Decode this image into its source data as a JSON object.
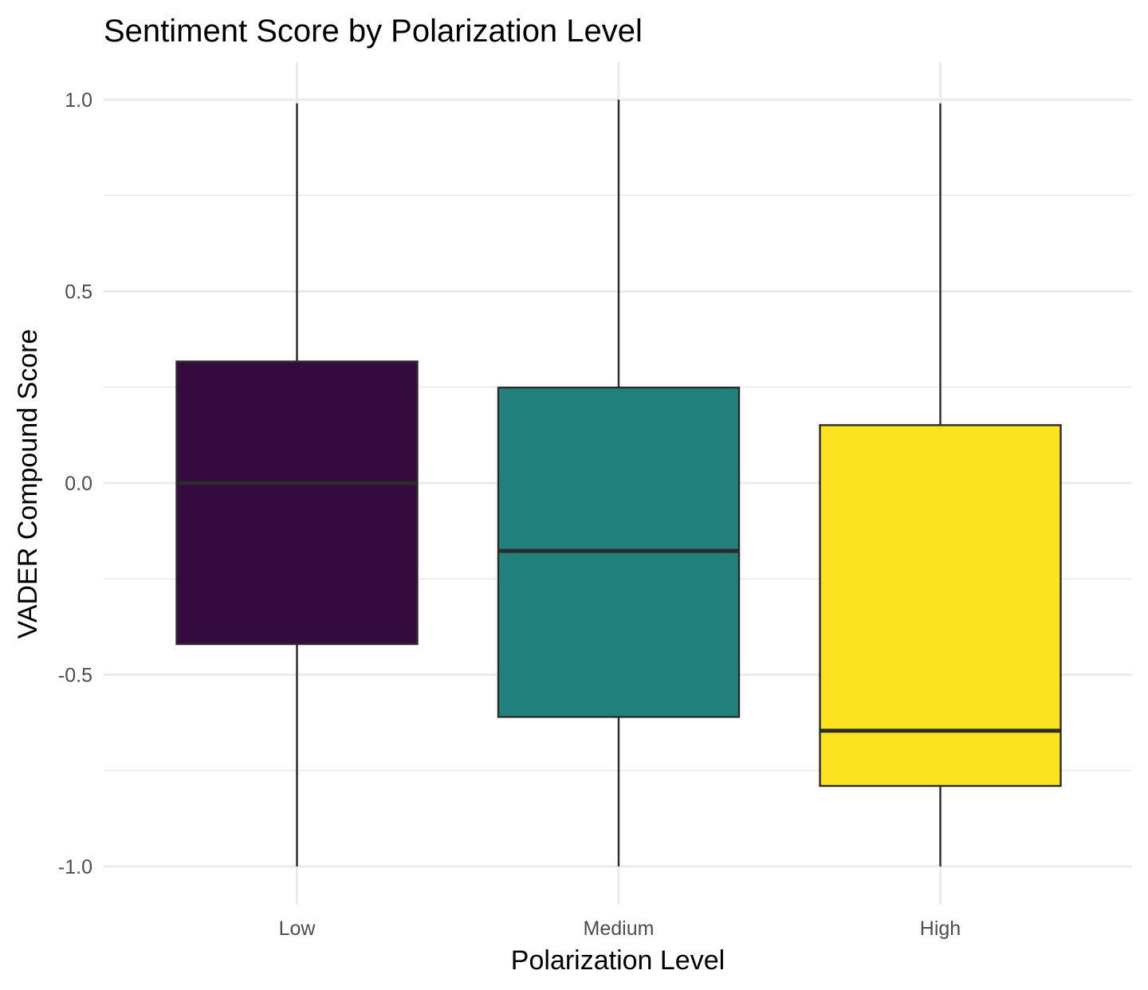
{
  "chart_data": {
    "type": "box",
    "title": "Sentiment Score by Polarization Level",
    "xlabel": "Polarization Level",
    "ylabel": "VADER Compound Score",
    "categories": [
      "Low",
      "Medium",
      "High"
    ],
    "ylim": [
      -1.1,
      1.1
    ],
    "yticks": [
      -1.0,
      -0.5,
      0.0,
      0.5,
      1.0
    ],
    "ytick_labels": [
      "-1.0",
      "-0.5",
      "0.0",
      "0.5",
      "1.0"
    ],
    "grid": true,
    "legend": "none",
    "boxes": [
      {
        "category": "Low",
        "min": -1.0,
        "q1": -0.42,
        "median": 0.0,
        "q3": 0.317,
        "max": 0.99,
        "color": "#350A3F"
      },
      {
        "category": "Medium",
        "min": -1.0,
        "q1": -0.61,
        "median": -0.177,
        "q3": 0.249,
        "max": 1.0,
        "color": "#21807C"
      },
      {
        "category": "High",
        "min": -1.0,
        "q1": -0.79,
        "median": -0.646,
        "q3": 0.151,
        "max": 0.99,
        "color": "#FBE31F"
      }
    ]
  }
}
